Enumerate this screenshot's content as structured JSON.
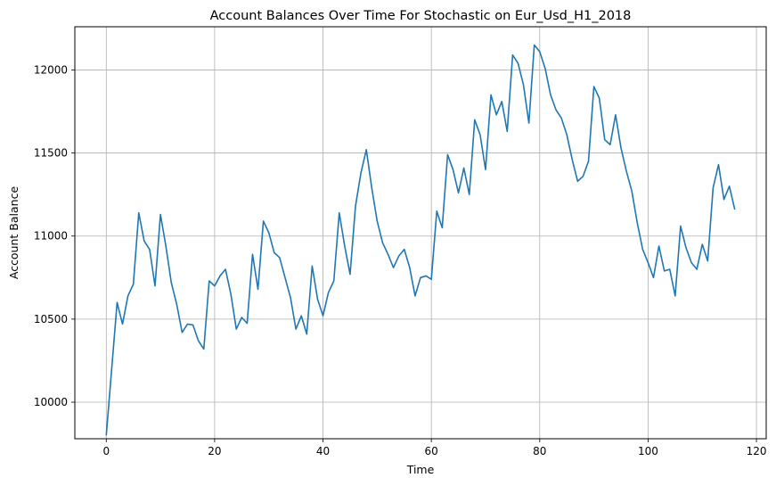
{
  "chart_data": {
    "type": "line",
    "title": "Account Balances Over Time For Stochastic on Eur_Usd_H1_2018",
    "xlabel": "Time",
    "ylabel": "Account Balance",
    "xlim": [
      -5.8,
      121.8
    ],
    "ylim": [
      9780,
      12260
    ],
    "xticks": [
      0,
      20,
      40,
      60,
      80,
      100,
      120
    ],
    "yticks": [
      10000,
      10500,
      11000,
      11500,
      12000
    ],
    "grid": true,
    "series": [
      {
        "color": "#1f77b4",
        "x": [
          0,
          1,
          2,
          3,
          4,
          5,
          6,
          7,
          8,
          9,
          10,
          11,
          12,
          13,
          14,
          15,
          16,
          17,
          18,
          19,
          20,
          21,
          22,
          23,
          24,
          25,
          26,
          27,
          28,
          29,
          30,
          31,
          32,
          33,
          34,
          35,
          36,
          37,
          38,
          39,
          40,
          41,
          42,
          43,
          44,
          45,
          46,
          47,
          48,
          49,
          50,
          51,
          52,
          53,
          54,
          55,
          56,
          57,
          58,
          59,
          60,
          61,
          62,
          63,
          64,
          65,
          66,
          67,
          68,
          69,
          70,
          71,
          72,
          73,
          74,
          75,
          76,
          77,
          78,
          79,
          80,
          81,
          82,
          83,
          84,
          85,
          86,
          87,
          88,
          89,
          90,
          91,
          92,
          93,
          94,
          95,
          96,
          97,
          98,
          99,
          100,
          101,
          102,
          103,
          104,
          105,
          106,
          107,
          108,
          109,
          110,
          111,
          112,
          113,
          114,
          115,
          116
        ],
        "y": [
          9800,
          10200,
          10600,
          10470,
          10640,
          10710,
          11140,
          10970,
          10920,
          10700,
          11130,
          10940,
          10720,
          10590,
          10420,
          10470,
          10465,
          10370,
          10320,
          10730,
          10700,
          10760,
          10800,
          10650,
          10440,
          10510,
          10475,
          10890,
          10680,
          11090,
          11020,
          10900,
          10870,
          10750,
          10630,
          10440,
          10520,
          10410,
          10820,
          10620,
          10520,
          10660,
          10730,
          11140,
          10940,
          10770,
          11180,
          11380,
          11520,
          11290,
          11090,
          10960,
          10890,
          10810,
          10880,
          10920,
          10810,
          10640,
          10750,
          10760,
          10740,
          11150,
          11050,
          11490,
          11400,
          11260,
          11410,
          11250,
          11700,
          11610,
          11400,
          11850,
          11730,
          11810,
          11630,
          12090,
          12040,
          11910,
          11680,
          12150,
          12110,
          12010,
          11850,
          11760,
          11710,
          11610,
          11460,
          11330,
          11360,
          11450,
          11900,
          11830,
          11580,
          11550,
          11730,
          11530,
          11390,
          11270,
          11080,
          10920,
          10840,
          10750,
          10940,
          10790,
          10800,
          10640,
          11060,
          10930,
          10840,
          10800,
          10950,
          10850,
          11290,
          11430,
          11220,
          11300,
          11160
        ]
      }
    ]
  }
}
